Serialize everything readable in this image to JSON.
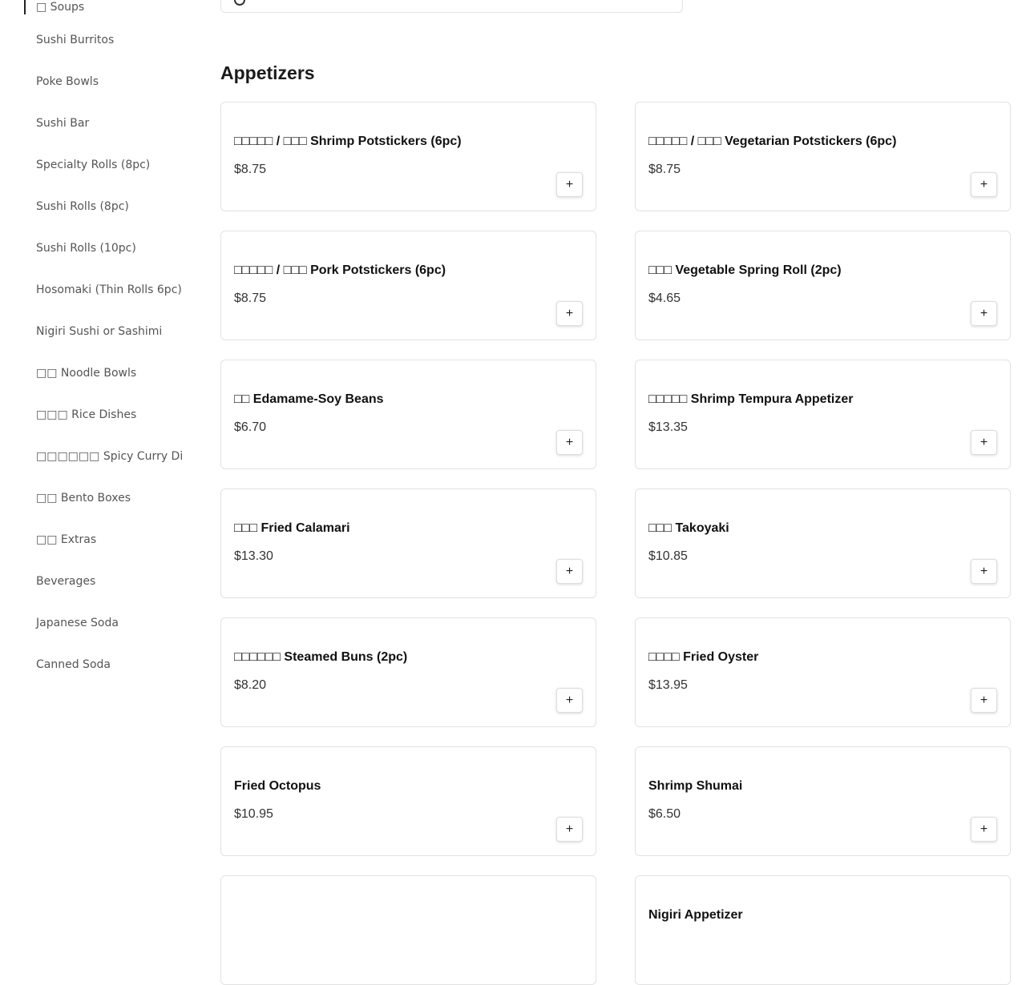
{
  "sidebar": {
    "active": "□ Soups",
    "items": [
      "Sushi Burritos",
      "Poke Bowls",
      "Sushi Bar",
      "Specialty Rolls (8pc)",
      "Sushi Rolls (8pc)",
      "Sushi Rolls (10pc)",
      "Hosomaki (Thin Rolls 6pc)",
      "Nigiri Sushi or Sashimi",
      "□□ Noodle Bowls",
      "□□□ Rice Dishes",
      "□□□□□□ Spicy Curry Dishes",
      "□□ Bento Boxes",
      "□□ Extras",
      "Beverages",
      "Japanese Soda",
      "Canned Soda"
    ]
  },
  "search": {
    "icon": "search-icon"
  },
  "section": {
    "title": "Appetizers"
  },
  "items": [
    {
      "name": "□□□□□ / □□□ Shrimp Potstickers (6pc)",
      "price": "$8.75"
    },
    {
      "name": "□□□□□ / □□□ Vegetarian Potstickers (6pc)",
      "price": "$8.75"
    },
    {
      "name": "□□□□□ / □□□ Pork Potstickers (6pc)",
      "price": "$8.75"
    },
    {
      "name": "□□□ Vegetable Spring Roll (2pc)",
      "price": "$4.65"
    },
    {
      "name": "□□ Edamame-Soy Beans",
      "price": "$6.70"
    },
    {
      "name": "□□□□□ Shrimp Tempura Appetizer",
      "price": "$13.35"
    },
    {
      "name": "□□□ Fried Calamari",
      "price": "$13.30"
    },
    {
      "name": "□□□ Takoyaki",
      "price": "$10.85"
    },
    {
      "name": "□□□□□□ Steamed Buns (2pc)",
      "price": "$8.20"
    },
    {
      "name": "□□□□ Fried Oyster",
      "price": "$13.95"
    },
    {
      "name": "Fried Octopus",
      "price": "$10.95"
    },
    {
      "name": "Shrimp Shumai",
      "price": "$6.50"
    },
    {
      "name": "",
      "price": ""
    },
    {
      "name": "Nigiri Appetizer",
      "price": ""
    }
  ],
  "add_label": "+"
}
